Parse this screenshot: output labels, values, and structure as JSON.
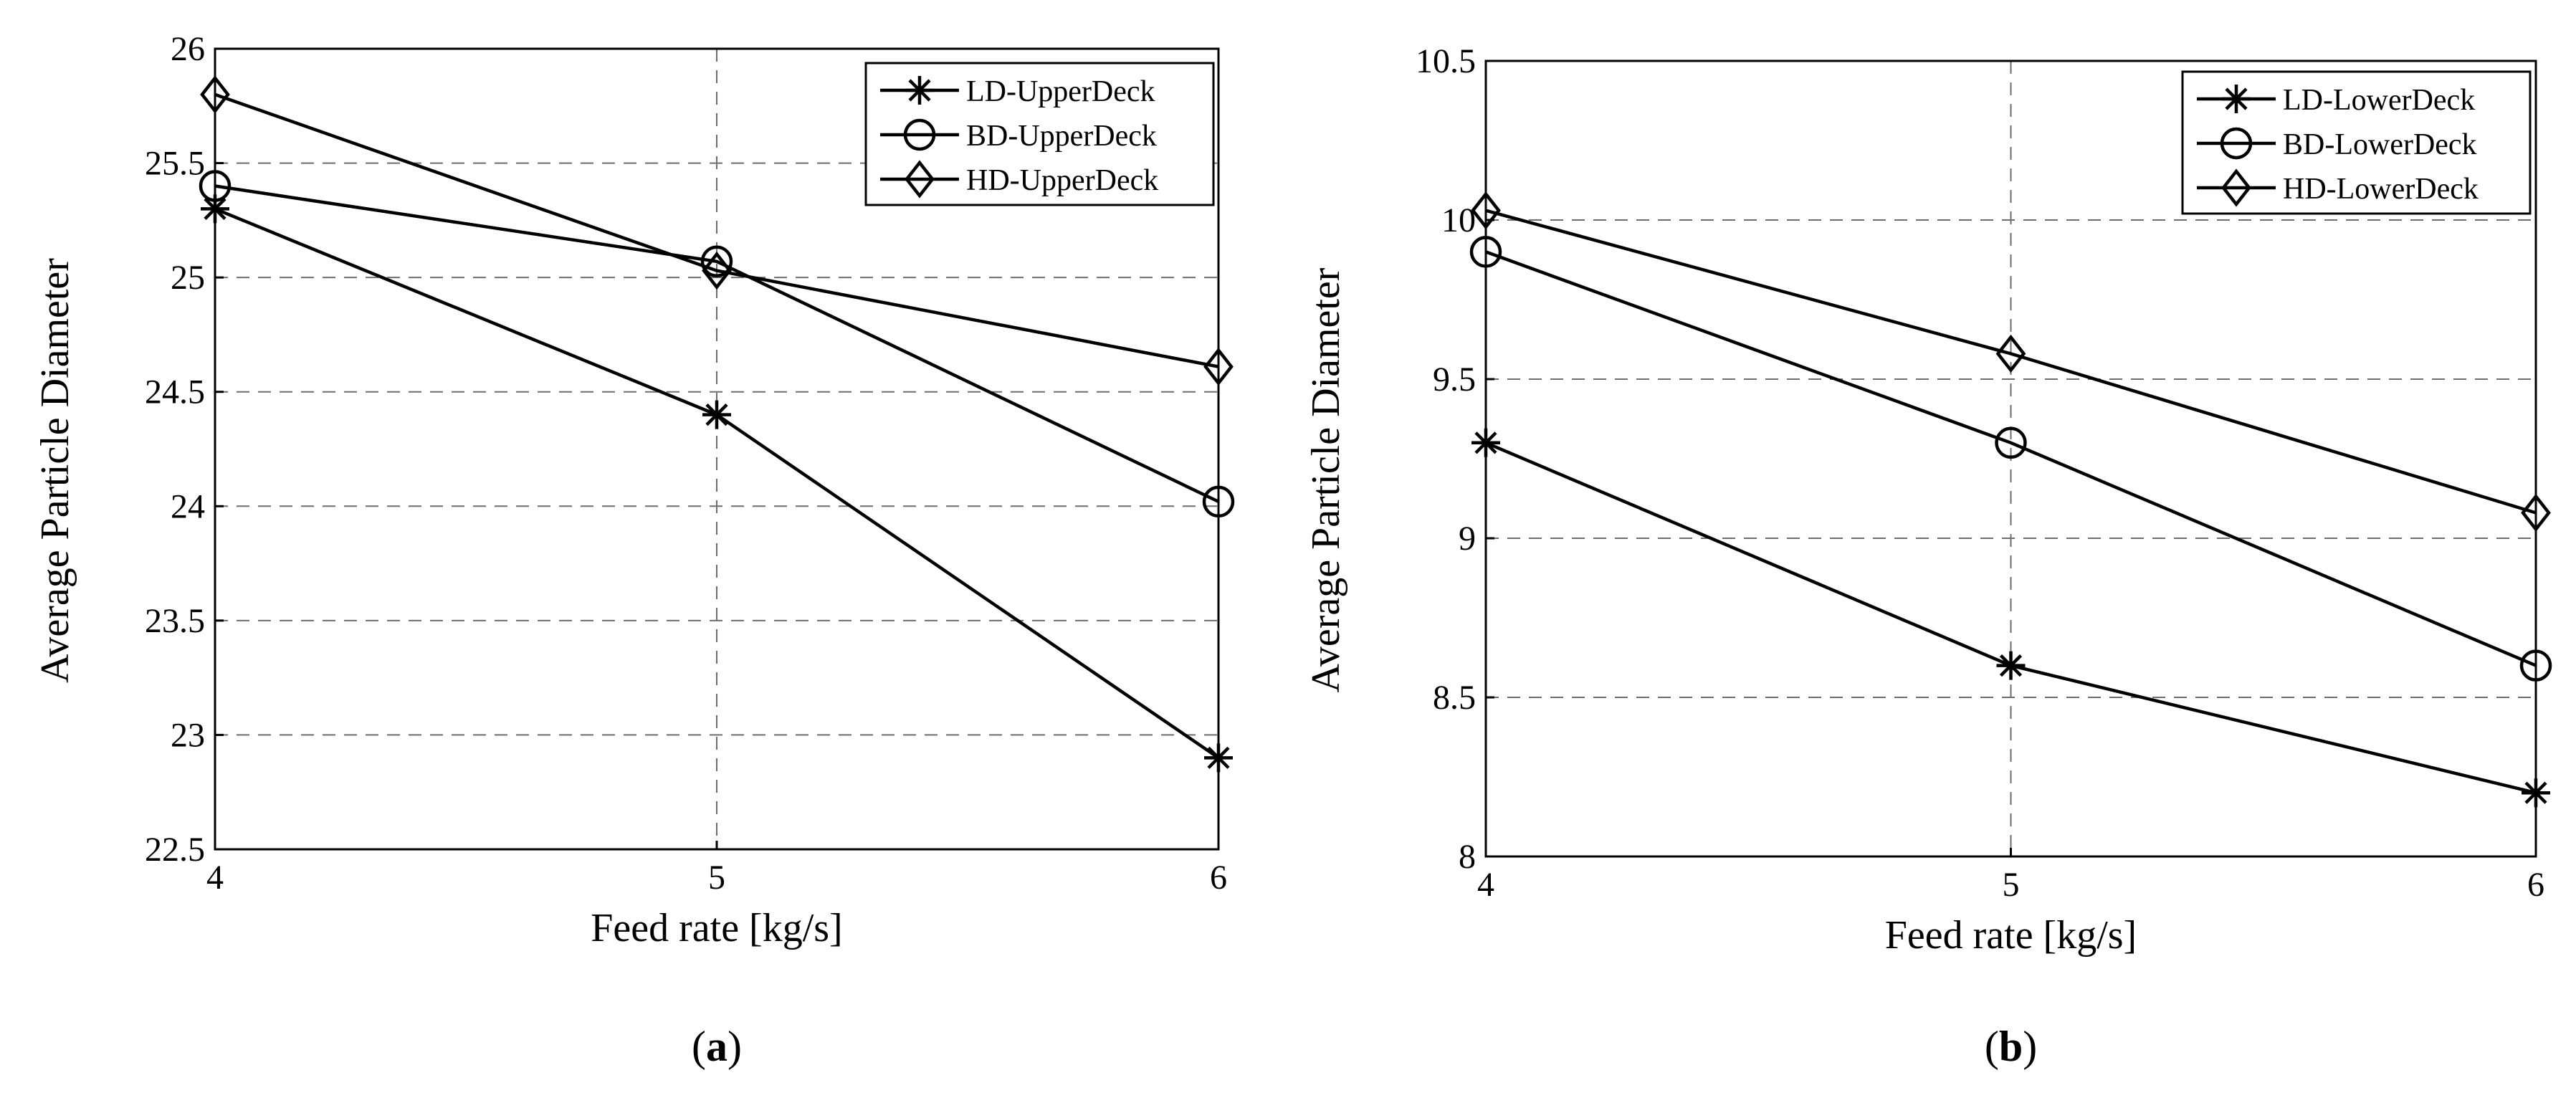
{
  "chart_data": [
    {
      "type": "line",
      "panel_label": "a",
      "xlabel": "Feed rate [kg/s]",
      "ylabel": "Average Particle Diameter",
      "x": [
        4,
        5,
        6
      ],
      "xlim": [
        4,
        6
      ],
      "ylim": [
        22.5,
        26
      ],
      "xticks": [
        "4",
        "5",
        "6"
      ],
      "yticks": [
        "22.5",
        "23",
        "23.5",
        "24",
        "24.5",
        "25",
        "25.5",
        "26"
      ],
      "grid": true,
      "legend_position": "top-right",
      "series": [
        {
          "name": "LD-UpperDeck",
          "marker": "asterisk",
          "values": [
            25.3,
            24.4,
            22.9
          ]
        },
        {
          "name": "BD-UpperDeck",
          "marker": "circle",
          "values": [
            25.4,
            25.07,
            24.02
          ]
        },
        {
          "name": "HD-UpperDeck",
          "marker": "diamond",
          "values": [
            25.8,
            25.03,
            24.61
          ]
        }
      ]
    },
    {
      "type": "line",
      "panel_label": "b",
      "xlabel": "Feed rate [kg/s]",
      "ylabel": "Average Particle Diameter",
      "x": [
        4,
        5,
        6
      ],
      "xlim": [
        4,
        6
      ],
      "ylim": [
        8,
        10.5
      ],
      "xticks": [
        "4",
        "5",
        "6"
      ],
      "yticks": [
        "8",
        "8.5",
        "9",
        "9.5",
        "10",
        "10.5"
      ],
      "grid": true,
      "legend_position": "top-right",
      "series": [
        {
          "name": "LD-LowerDeck",
          "marker": "asterisk",
          "values": [
            9.3,
            8.6,
            8.2
          ]
        },
        {
          "name": "BD-LowerDeck",
          "marker": "circle",
          "values": [
            9.9,
            9.3,
            8.6
          ]
        },
        {
          "name": "HD-LowerDeck",
          "marker": "diamond",
          "values": [
            10.03,
            9.58,
            9.08
          ]
        }
      ]
    }
  ]
}
